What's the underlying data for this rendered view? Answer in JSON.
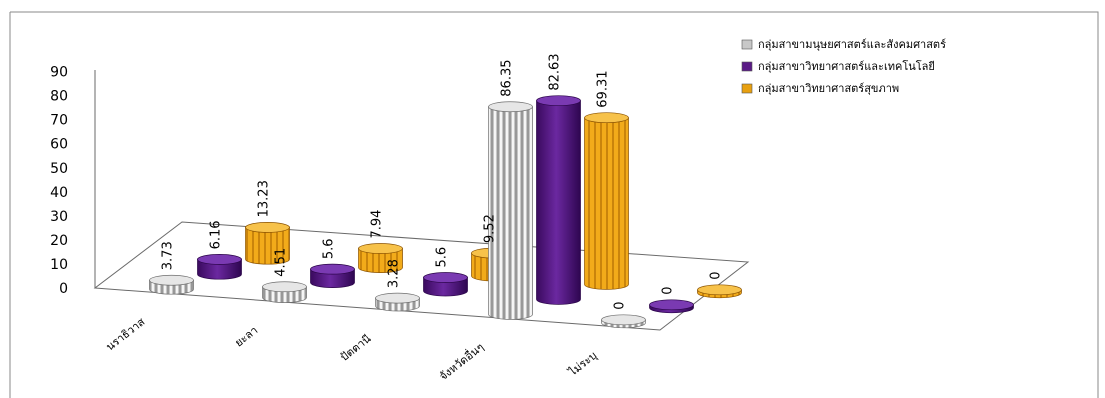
{
  "chart_data": {
    "type": "bar",
    "categories": [
      "นราธิวาส",
      "ยะลา",
      "ปัตตานี",
      "จังหวัดอื่นๆ",
      "ไม่ระบุ"
    ],
    "series": [
      {
        "name": "กลุ่มสาขามนุษยศาสตร์และสังคมศาสตร์",
        "values": [
          3.73,
          4.51,
          3.28,
          86.35,
          0
        ],
        "color": "#c8c8c8"
      },
      {
        "name": "กลุ่มสาขาวิทยาศาสตร์และเทคโนโลยี",
        "values": [
          6.16,
          5.6,
          5.6,
          82.63,
          0
        ],
        "color": "#5a1a86"
      },
      {
        "name": "กลุ่มสาขาวิทยาศาสตร์สุขภาพ",
        "values": [
          13.23,
          7.94,
          9.52,
          69.31,
          0
        ],
        "color": "#e8a010"
      }
    ],
    "y_ticks": [
      "0",
      "10",
      "20",
      "30",
      "40",
      "50",
      "60",
      "70",
      "80",
      "90"
    ],
    "ylim": [
      0,
      90
    ],
    "legend_position": "top-right",
    "style": "3d-cylinder"
  }
}
